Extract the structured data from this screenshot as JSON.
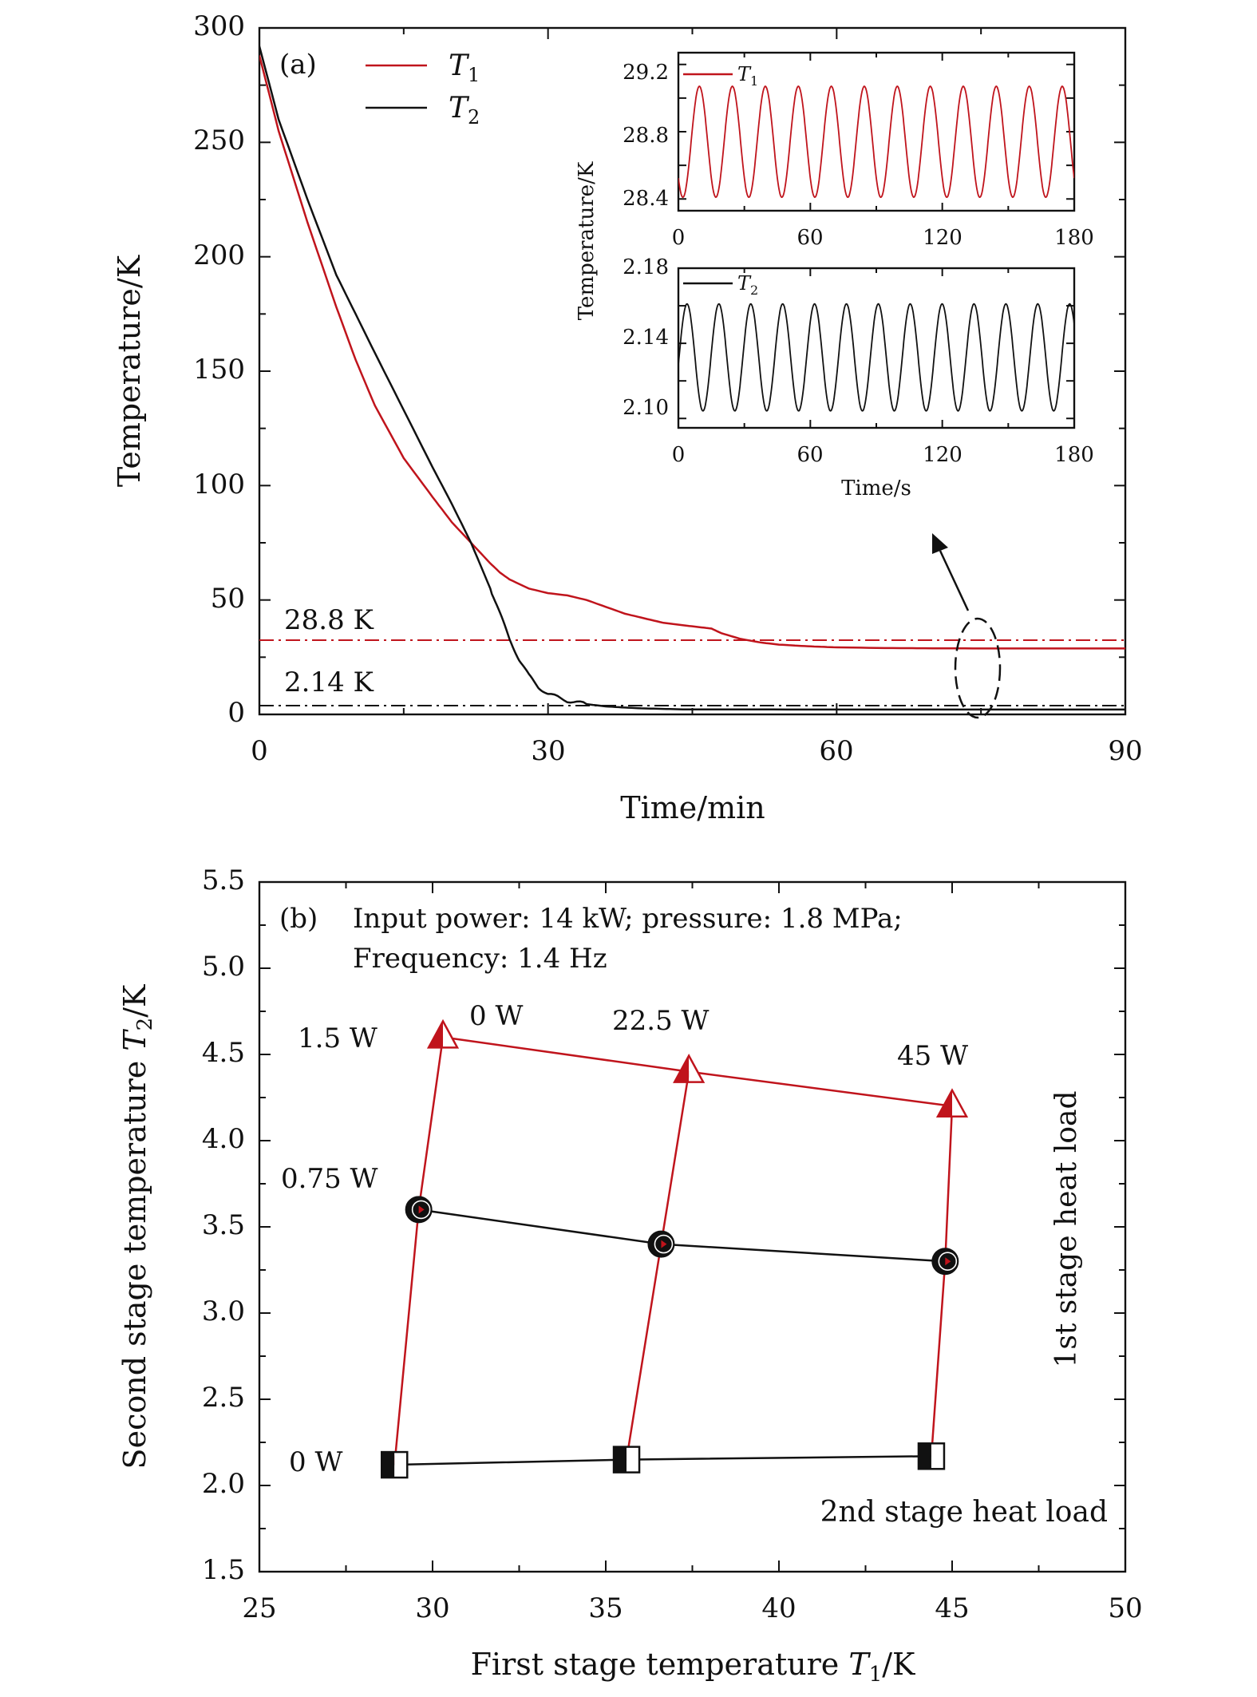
{
  "chart_data": [
    {
      "id": "a",
      "type": "line",
      "panel_label": "(a)",
      "xlabel": "Time/min",
      "ylabel": "Temperature/K",
      "xlim": [
        0,
        90
      ],
      "ylim": [
        0,
        300
      ],
      "xticks": [
        "0",
        "30",
        "60",
        "90"
      ],
      "yticks": [
        "0",
        "50",
        "100",
        "150",
        "200",
        "250",
        "300"
      ],
      "legend": [
        "T1",
        "T2"
      ],
      "legend_position": "top-left",
      "series": [
        {
          "name": "T1",
          "color": "#c0141c",
          "x": [
            0,
            2,
            5,
            8,
            10,
            12,
            15,
            18,
            20,
            22,
            24,
            25,
            26,
            28,
            30,
            32,
            34,
            36,
            38,
            40,
            42,
            44,
            46,
            47,
            48,
            50,
            52,
            54,
            56,
            58,
            60,
            65,
            70,
            75,
            80,
            85,
            90
          ],
          "y": [
            288,
            255,
            215,
            178,
            155,
            135,
            112,
            95,
            84,
            75,
            66,
            62,
            59,
            55,
            53,
            52,
            50,
            47,
            44,
            42,
            40,
            39,
            38,
            37.5,
            35.5,
            33,
            31.5,
            30.5,
            30,
            29.6,
            29.3,
            29,
            28.9,
            28.8,
            28.8,
            28.8,
            28.8
          ]
        },
        {
          "name": "T2",
          "color": "#111111",
          "x": [
            0,
            2,
            5,
            8,
            10,
            12,
            15,
            18,
            20,
            22,
            24,
            25,
            26,
            27,
            28,
            29,
            30,
            32,
            34,
            36,
            38,
            40,
            42,
            44,
            50,
            60,
            70,
            80,
            90
          ],
          "y": [
            292,
            260,
            225,
            192,
            175,
            158,
            133,
            108,
            92,
            75,
            55,
            44,
            33,
            24,
            17,
            12,
            9,
            6,
            4.5,
            3.5,
            3,
            2.6,
            2.4,
            2.2,
            2.15,
            2.14,
            2.14,
            2.14,
            2.14
          ]
        }
      ],
      "reference_lines": [
        {
          "label": "28.8 K",
          "y": 28.8,
          "color": "#c0141c",
          "style": "dash-dot"
        },
        {
          "label": "2.14 K",
          "y": 2.14,
          "color": "#111111",
          "style": "dash-dot"
        }
      ],
      "annotation": "dashed ellipse around t = 75 min with arrow pointing to the insets"
    },
    {
      "id": "a-inset-top",
      "type": "line",
      "ylabel": "Temperature/K",
      "xlim": [
        0,
        180
      ],
      "ylim": [
        28.33,
        29.27
      ],
      "xticks": [
        "0",
        "60",
        "120",
        "180"
      ],
      "yticks": [
        "28.4",
        "28.8",
        "29.2"
      ],
      "legend": [
        "T1"
      ],
      "series": [
        {
          "name": "T1",
          "color": "#c0141c",
          "type": "oscillation",
          "mean": 28.74,
          "amplitude": 0.33,
          "period_s": 15,
          "phase_s": 5.8,
          "x_start": 0,
          "x_end": 180
        }
      ]
    },
    {
      "id": "a-inset-bottom",
      "type": "line",
      "xlabel": "Time/s",
      "xlim": [
        0,
        180
      ],
      "ylim": [
        2.095,
        2.18
      ],
      "xticks": [
        "0",
        "60",
        "120",
        "180"
      ],
      "yticks": [
        "2.10",
        "2.14",
        "2.18"
      ],
      "legend": [
        "T2"
      ],
      "series": [
        {
          "name": "T2",
          "color": "#111111",
          "type": "oscillation",
          "mean": 2.1325,
          "amplitude": 0.0285,
          "period_s": 14.5,
          "phase_s": 14.8,
          "x_start": 0,
          "x_end": 180
        }
      ]
    },
    {
      "id": "b",
      "type": "scatter",
      "panel_label": "(b)",
      "title_lines": [
        "Input power: 14 kW; pressure: 1.8 MPa;",
        "Frequency: 1.4 Hz"
      ],
      "xlabel": "First stage temperature T1/K",
      "ylabel": "Second stage temperature T2/K",
      "xlim": [
        25,
        50
      ],
      "ylim": [
        1.5,
        5.5
      ],
      "xticks": [
        "25",
        "30",
        "35",
        "40",
        "45",
        "50"
      ],
      "yticks": [
        "1.5",
        "2.0",
        "2.5",
        "3.0",
        "3.5",
        "4.0",
        "4.5",
        "5.0",
        "5.5"
      ],
      "series": [
        {
          "name": "2nd stage load 1.5 W",
          "marker": "triangle",
          "color": "#c0141c",
          "x": [
            30.3,
            37.4,
            45.0
          ],
          "y": [
            4.6,
            4.4,
            4.2
          ]
        },
        {
          "name": "2nd stage load 0.75 W",
          "marker": "circle",
          "color": "#111111",
          "x": [
            29.6,
            36.6,
            44.8
          ],
          "y": [
            3.6,
            3.4,
            3.3
          ]
        },
        {
          "name": "2nd stage load 0 W",
          "marker": "square",
          "color": "#111111",
          "x": [
            28.9,
            35.6,
            44.4
          ],
          "y": [
            2.12,
            2.15,
            2.17
          ]
        }
      ],
      "iso_lines_1st_stage": [
        {
          "label": "0 W",
          "color": "#c0141c",
          "x": [
            28.9,
            29.6,
            30.3
          ],
          "y": [
            2.12,
            3.6,
            4.6
          ]
        },
        {
          "label": "22.5 W",
          "color": "#c0141c",
          "x": [
            35.6,
            36.6,
            37.4
          ],
          "y": [
            2.15,
            3.4,
            4.4
          ]
        },
        {
          "label": "45 W",
          "color": "#c0141c",
          "x": [
            44.4,
            44.8,
            45.0
          ],
          "y": [
            2.17,
            3.3,
            4.2
          ]
        }
      ],
      "point_labels": [
        "1.5 W",
        "0.75 W",
        "0 W",
        "0 W",
        "22.5 W",
        "45 W"
      ],
      "side_labels": {
        "right_vertical": "1st stage heat load",
        "bottom_right": "2nd stage heat load"
      }
    }
  ]
}
